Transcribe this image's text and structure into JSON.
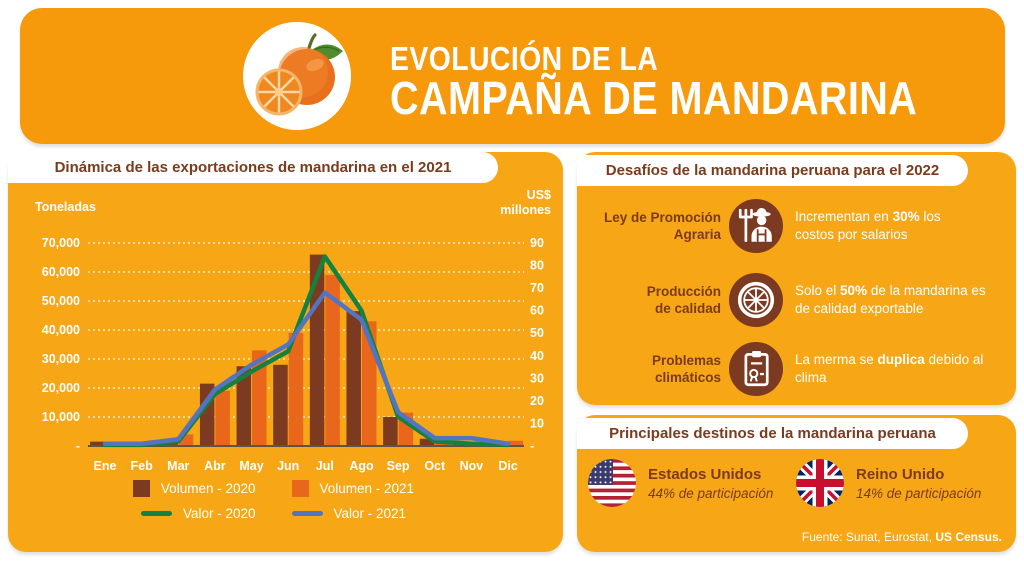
{
  "colors": {
    "header_bg": "#F6990A",
    "panel_bg": "#F7A616",
    "brown": "#7B3B1C",
    "brown_circle": "#7C3A21"
  },
  "header": {
    "title_line1": "EVOLUCIÓN DE LA",
    "title_line2": "CAMPAÑA DE MANDARINA"
  },
  "left_panel": {
    "banner": "Dinámica de las exportaciones de mandarina en el 2021"
  },
  "chart_data": {
    "type": "combo-bar-line",
    "categories": [
      "Ene",
      "Feb",
      "Mar",
      "Abr",
      "May",
      "Jun",
      "Jul",
      "Ago",
      "Sep",
      "Oct",
      "Nov",
      "Dic"
    ],
    "left_axis": {
      "title": "Toneladas",
      "min": 0,
      "max": 70000,
      "step": 10000,
      "tick_labels": [
        "70,000",
        "60,000",
        "50,000",
        "40,000",
        "30,000",
        "20,000",
        "10,000"
      ],
      "zero_label": "-"
    },
    "right_axis": {
      "title": "US$ millones",
      "min": 0,
      "max": 90,
      "step": 10,
      "tick_labels": [
        "90",
        "80",
        "70",
        "60",
        "50",
        "40",
        "30",
        "20",
        "10"
      ],
      "zero_label": "-"
    },
    "grid": "horizontal-dotted-white",
    "legend_position": "bottom",
    "series": [
      {
        "name": "Volumen - 2020",
        "type": "bar",
        "axis": "left",
        "color": "#7C3A21",
        "values": [
          1500,
          700,
          2000,
          21500,
          27500,
          28000,
          66000,
          46500,
          10000,
          2500,
          1200,
          700
        ]
      },
      {
        "name": "Volumen - 2021",
        "type": "bar",
        "axis": "left",
        "color": "#E8671B",
        "values": [
          800,
          500,
          4000,
          19000,
          33000,
          39000,
          59000,
          43000,
          11500,
          1500,
          900,
          1800
        ]
      },
      {
        "name": "Valor - 2020",
        "type": "line",
        "axis": "right",
        "color": "#14813F",
        "values": [
          0.5,
          0.5,
          2,
          23,
          33,
          42,
          84,
          60,
          13,
          2,
          1,
          0.5
        ]
      },
      {
        "name": "Valor - 2021",
        "type": "line",
        "axis": "right",
        "color": "#5474C2",
        "values": [
          1,
          1,
          3,
          25,
          36,
          45,
          68,
          56,
          15,
          3.5,
          3.5,
          1
        ]
      }
    ]
  },
  "challenges": {
    "banner": "Desafíos de la mandarina peruana para el 2022",
    "items": [
      {
        "label": "Ley de Promoción Agraria",
        "icon": "farmer-icon",
        "text_pre": "Incrementan en ",
        "text_bold": "30%",
        "text_post": " los costos por salarios"
      },
      {
        "label": "Producción de calidad",
        "icon": "citrus-slice-icon",
        "text_pre": "Solo el ",
        "text_bold": "50%",
        "text_post": " de la mandarina es de calidad exportable"
      },
      {
        "label": "Problemas climáticos",
        "icon": "clipboard-award-icon",
        "text_pre": "La merma se ",
        "text_bold": "duplica",
        "text_post": " debido al clima"
      }
    ]
  },
  "destinations": {
    "banner": "Principales destinos de la mandarina peruana",
    "items": [
      {
        "country": "Estados Unidos",
        "share": "44% de participación",
        "flag": "us"
      },
      {
        "country": "Reino Unido",
        "share": "14% de participación",
        "flag": "uk"
      }
    ]
  },
  "footer": {
    "source_pre": "Fuente: Sunat, Eurostat, ",
    "source_bold": "US Census."
  }
}
